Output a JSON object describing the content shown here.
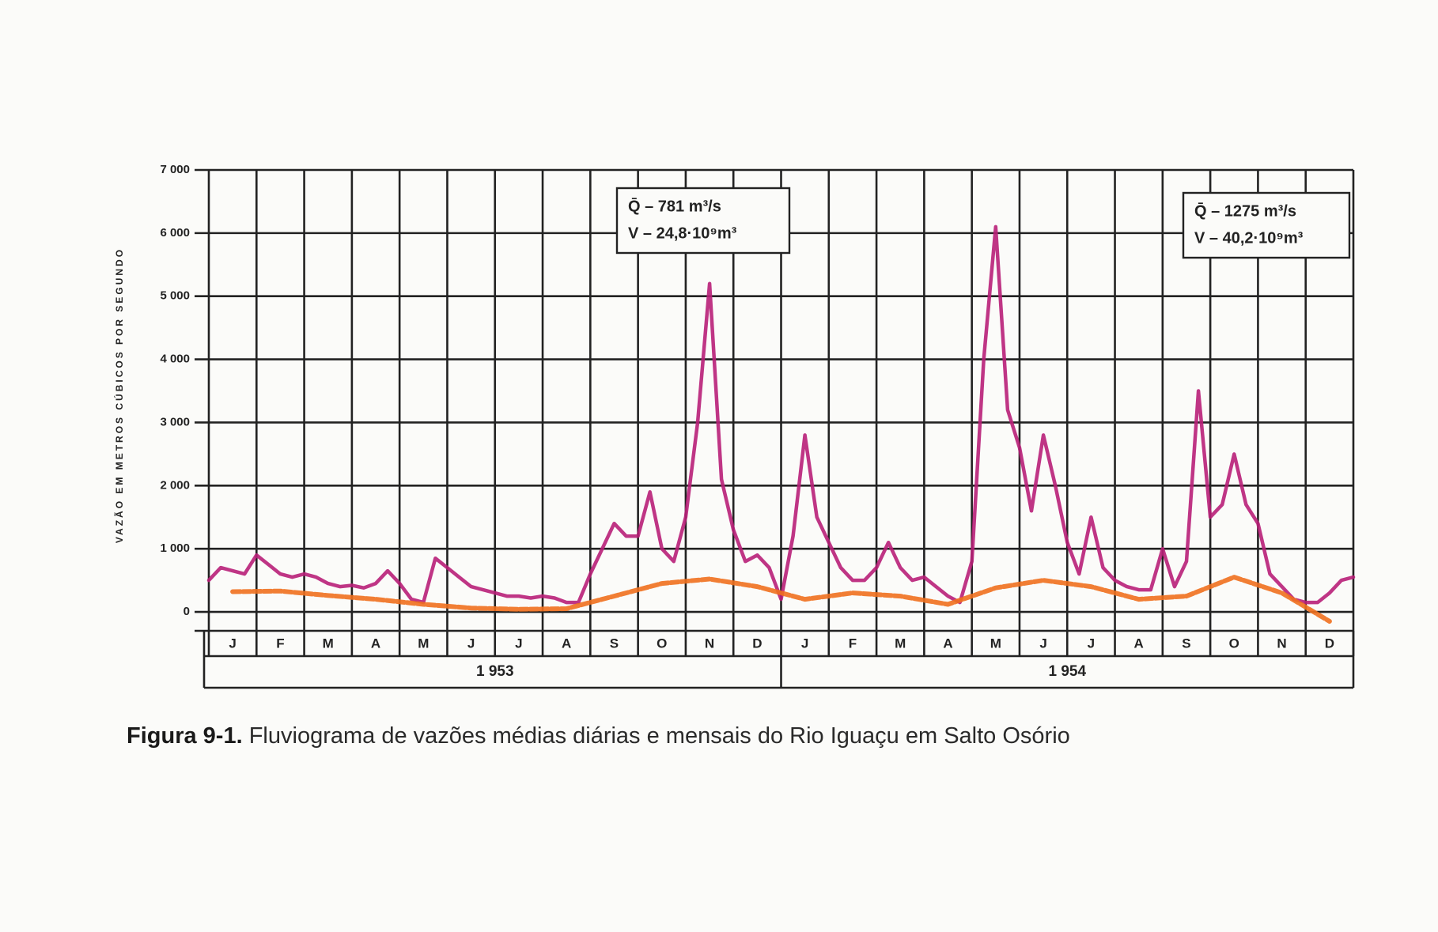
{
  "chart_data": {
    "type": "line",
    "y_label": "VAZÃO EM METROS CÚBICOS POR SEGUNDO",
    "categories": [
      "J",
      "F",
      "M",
      "A",
      "M",
      "J",
      "J",
      "A",
      "S",
      "O",
      "N",
      "D",
      "J",
      "F",
      "M",
      "A",
      "M",
      "J",
      "J",
      "A",
      "S",
      "O",
      "N",
      "D"
    ],
    "years": [
      "1 953",
      "1 954"
    ],
    "xlim": [
      0,
      24
    ],
    "ylim": [
      -300,
      7000
    ],
    "yticks": [
      0,
      {
        "value": 1000,
        "label": "1 000"
      },
      {
        "value": 2000,
        "label": "2 000"
      },
      {
        "value": 3000,
        "label": "3 000"
      },
      {
        "value": 4000,
        "label": "4 000"
      },
      {
        "value": 5000,
        "label": "5 000"
      },
      {
        "value": 6000,
        "label": "6 000"
      },
      {
        "value": 7000,
        "label": "7 000"
      }
    ],
    "grid": true,
    "series": [
      {
        "color": "#b81f78",
        "x": [
          0,
          0.25,
          0.5,
          0.75,
          1,
          1.25,
          1.5,
          1.75,
          2,
          2.25,
          2.5,
          2.75,
          3,
          3.25,
          3.5,
          3.75,
          4,
          4.25,
          4.5,
          4.75,
          5,
          5.25,
          5.5,
          5.75,
          6,
          6.25,
          6.5,
          6.75,
          7,
          7.25,
          7.5,
          7.75,
          8,
          8.25,
          8.5,
          8.75,
          9,
          9.25,
          9.5,
          9.75,
          10,
          10.25,
          10.5,
          10.75,
          11,
          11.25,
          11.5,
          11.75,
          12,
          12.25,
          12.5,
          12.75,
          13,
          13.25,
          13.5,
          13.75,
          14,
          14.25,
          14.5,
          14.75,
          15,
          15.25,
          15.5,
          15.75,
          16,
          16.25,
          16.5,
          16.75,
          17,
          17.25,
          17.5,
          17.75,
          18,
          18.25,
          18.5,
          18.75,
          19,
          19.25,
          19.5,
          19.75,
          20,
          20.25,
          20.5,
          20.75,
          21,
          21.25,
          21.5,
          21.75,
          22,
          22.25,
          22.5,
          22.75,
          23,
          23.25,
          23.5,
          23.75,
          24
        ],
        "values": [
          500,
          700,
          650,
          600,
          900,
          750,
          600,
          550,
          600,
          550,
          450,
          400,
          420,
          380,
          450,
          650,
          450,
          200,
          150,
          850,
          700,
          550,
          400,
          350,
          300,
          250,
          250,
          220,
          250,
          220,
          150,
          150,
          600,
          1000,
          1400,
          1200,
          1200,
          1900,
          1000,
          800,
          1500,
          3000,
          5200,
          2100,
          1300,
          800,
          900,
          700,
          200,
          1200,
          2800,
          1500,
          1100,
          700,
          500,
          500,
          700,
          1100,
          700,
          500,
          550,
          400,
          250,
          150,
          800,
          4000,
          6100,
          3200,
          2600,
          1600,
          2800,
          2000,
          1100,
          600,
          1500,
          700,
          500,
          400,
          350,
          350,
          1000,
          400,
          800,
          3500,
          1500,
          1700,
          2500,
          1700,
          1400,
          600,
          400,
          200,
          150,
          150,
          300,
          500,
          550
        ]
      },
      {
        "color": "#f0701e",
        "x": [
          0.5,
          1.5,
          2.5,
          3.5,
          4.5,
          5.5,
          6.5,
          7.5,
          8.5,
          9.5,
          10.5,
          11.5,
          12.5,
          13.5,
          14.5,
          15.5,
          16.5,
          17.5,
          18.5,
          19.5,
          20.5,
          21.5,
          22.5,
          23.5
        ],
        "values": [
          320,
          330,
          260,
          200,
          120,
          60,
          40,
          50,
          250,
          450,
          520,
          400,
          200,
          300,
          250,
          120,
          380,
          500,
          400,
          200,
          250,
          550,
          300,
          -150
        ]
      }
    ],
    "annotations": [
      "Q̄ – 781 m³/s",
      "V – 24,8·10⁹m³",
      "Q̄ – 1275 m³/s",
      "V – 40,2·10⁹m³"
    ],
    "caption_label": "Figura 9-1.",
    "caption": "Fluviograma de vazões médias diárias e mensais do Rio Iguaçu em Salto Osório"
  }
}
